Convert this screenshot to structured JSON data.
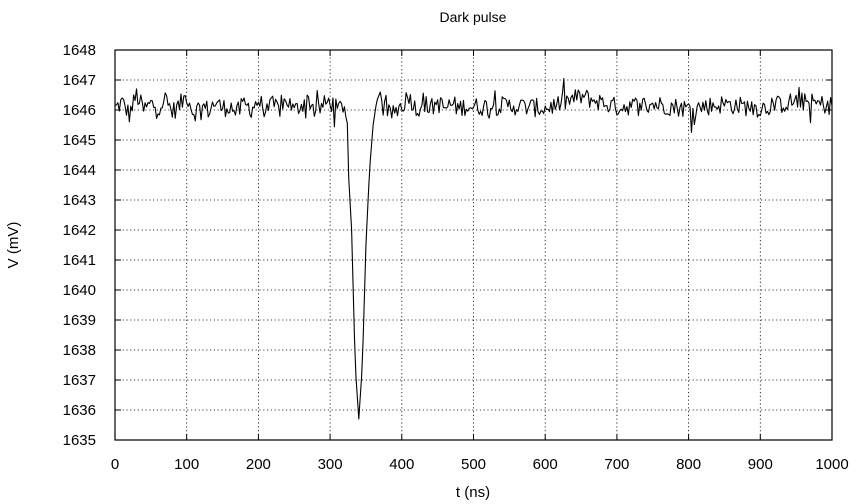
{
  "chart_data": {
    "type": "line",
    "title": "Dark pulse",
    "xlabel": "t (ns)",
    "ylabel": "V (mV)",
    "xlim": [
      0,
      1000
    ],
    "ylim": [
      1635,
      1648
    ],
    "xticks": [
      0,
      100,
      200,
      300,
      400,
      500,
      600,
      700,
      800,
      900,
      1000
    ],
    "yticks": [
      1635,
      1636,
      1637,
      1638,
      1639,
      1640,
      1641,
      1642,
      1643,
      1644,
      1645,
      1646,
      1647,
      1648
    ],
    "grid": true,
    "grid_style": "dotted",
    "line_color": "#000000",
    "baseline_mV": 1646.1,
    "noise_amplitude_mV": 0.35,
    "series": [
      {
        "x": [
          0,
          10,
          20,
          30,
          40,
          50,
          60,
          70,
          80,
          90,
          100,
          110,
          120,
          130,
          140,
          150,
          160,
          170,
          180,
          190,
          200,
          210,
          220,
          230,
          240,
          250,
          260,
          270,
          280,
          290,
          300,
          310,
          320,
          330,
          335,
          340,
          345,
          350,
          355,
          360,
          365,
          370,
          375,
          380,
          390,
          400,
          410,
          420,
          430,
          440,
          450,
          460,
          470,
          480,
          490,
          500,
          550,
          600,
          650,
          700,
          750,
          800,
          850,
          900,
          950,
          1000
        ],
        "y": [
          1646.0,
          1646.4,
          1645.6,
          1646.9,
          1645.9,
          1646.3,
          1646.1,
          1646.6,
          1645.8,
          1646.2,
          1646.9,
          1645.7,
          1646.2,
          1645.9,
          1646.4,
          1646.0,
          1646.2,
          1645.7,
          1646.3,
          1646.0,
          1646.5,
          1645.9,
          1646.2,
          1646.0,
          1646.6,
          1645.8,
          1646.3,
          1646.6,
          1645.8,
          1646.2,
          1646.5,
          1645.9,
          1646.3,
          1642.0,
          1637.5,
          1635.7,
          1637.5,
          1641.5,
          1644.0,
          1645.5,
          1646.3,
          1646.6,
          1645.9,
          1645.6,
          1645.8,
          1646.2,
          1646.9,
          1645.9,
          1646.4,
          1646.0,
          1646.4,
          1646.0,
          1646.3,
          1646.0,
          1646.2,
          1646.1,
          1646.2,
          1646.0,
          1646.8,
          1646.1,
          1646.3,
          1646.0,
          1646.3,
          1646.0,
          1646.5,
          1646.2
        ]
      }
    ]
  }
}
